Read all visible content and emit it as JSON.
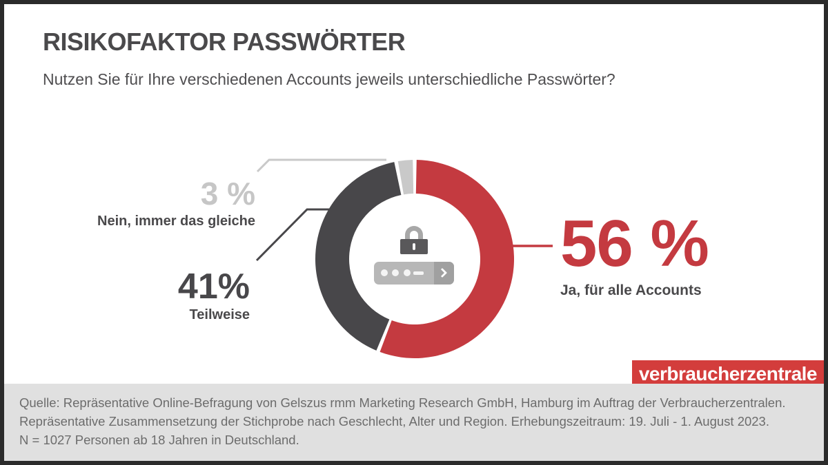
{
  "header": {
    "title": "RISIKOFAKTOR PASSWÖRTER",
    "subtitle": "Nutzen Sie für Ihre verschiedenen Accounts jeweils unterschiedliche Passwörter?"
  },
  "chart_data": {
    "type": "pie",
    "donut": true,
    "title": "RISIKOFAKTOR PASSWÖRTER",
    "question": "Nutzen Sie für Ihre verschiedenen Accounts jeweils unterschiedliche Passwörter?",
    "start_angle_deg": 0,
    "direction": "clockwise",
    "segments": [
      {
        "label": "Ja, für alle Accounts",
        "value": 56,
        "value_label": "56 %",
        "color": "#c43a40"
      },
      {
        "label": "Teilweise",
        "value": 41,
        "value_label": "41%",
        "color": "#48474a"
      },
      {
        "label": "Nein, immer das gleiche",
        "value": 3,
        "value_label": "3 %",
        "color": "#c9c9c9"
      }
    ]
  },
  "center_icons": {
    "padlock": "padlock-icon",
    "password_field": "password-field-icon"
  },
  "logo": {
    "text": "verbraucherzentrale"
  },
  "source": {
    "line1": "Quelle: Repräsentative Online-Befragung von Gelszus rmm Marketing Research GmbH, Hamburg im Auftrag der Verbraucherzentralen.",
    "line2": "Repräsentative Zusammensetzung der Stichprobe nach Geschlecht, Alter und Region. Erhebungszeitraum: 19. Juli - 1. August 2023.",
    "line3": "N = 1027 Personen ab 18 Jahren in Deutschland."
  },
  "colors": {
    "accent_red": "#c43a40",
    "dark_gray": "#48474a",
    "light_gray": "#c9c9c9",
    "label_text": "#4a494b",
    "source_text": "#6c6c6c",
    "source_bar_bg": "#e0e0e0",
    "frame": "#2b2b2b",
    "logo_bg": "#d33d3c",
    "logo_fg": "#ffffff"
  }
}
